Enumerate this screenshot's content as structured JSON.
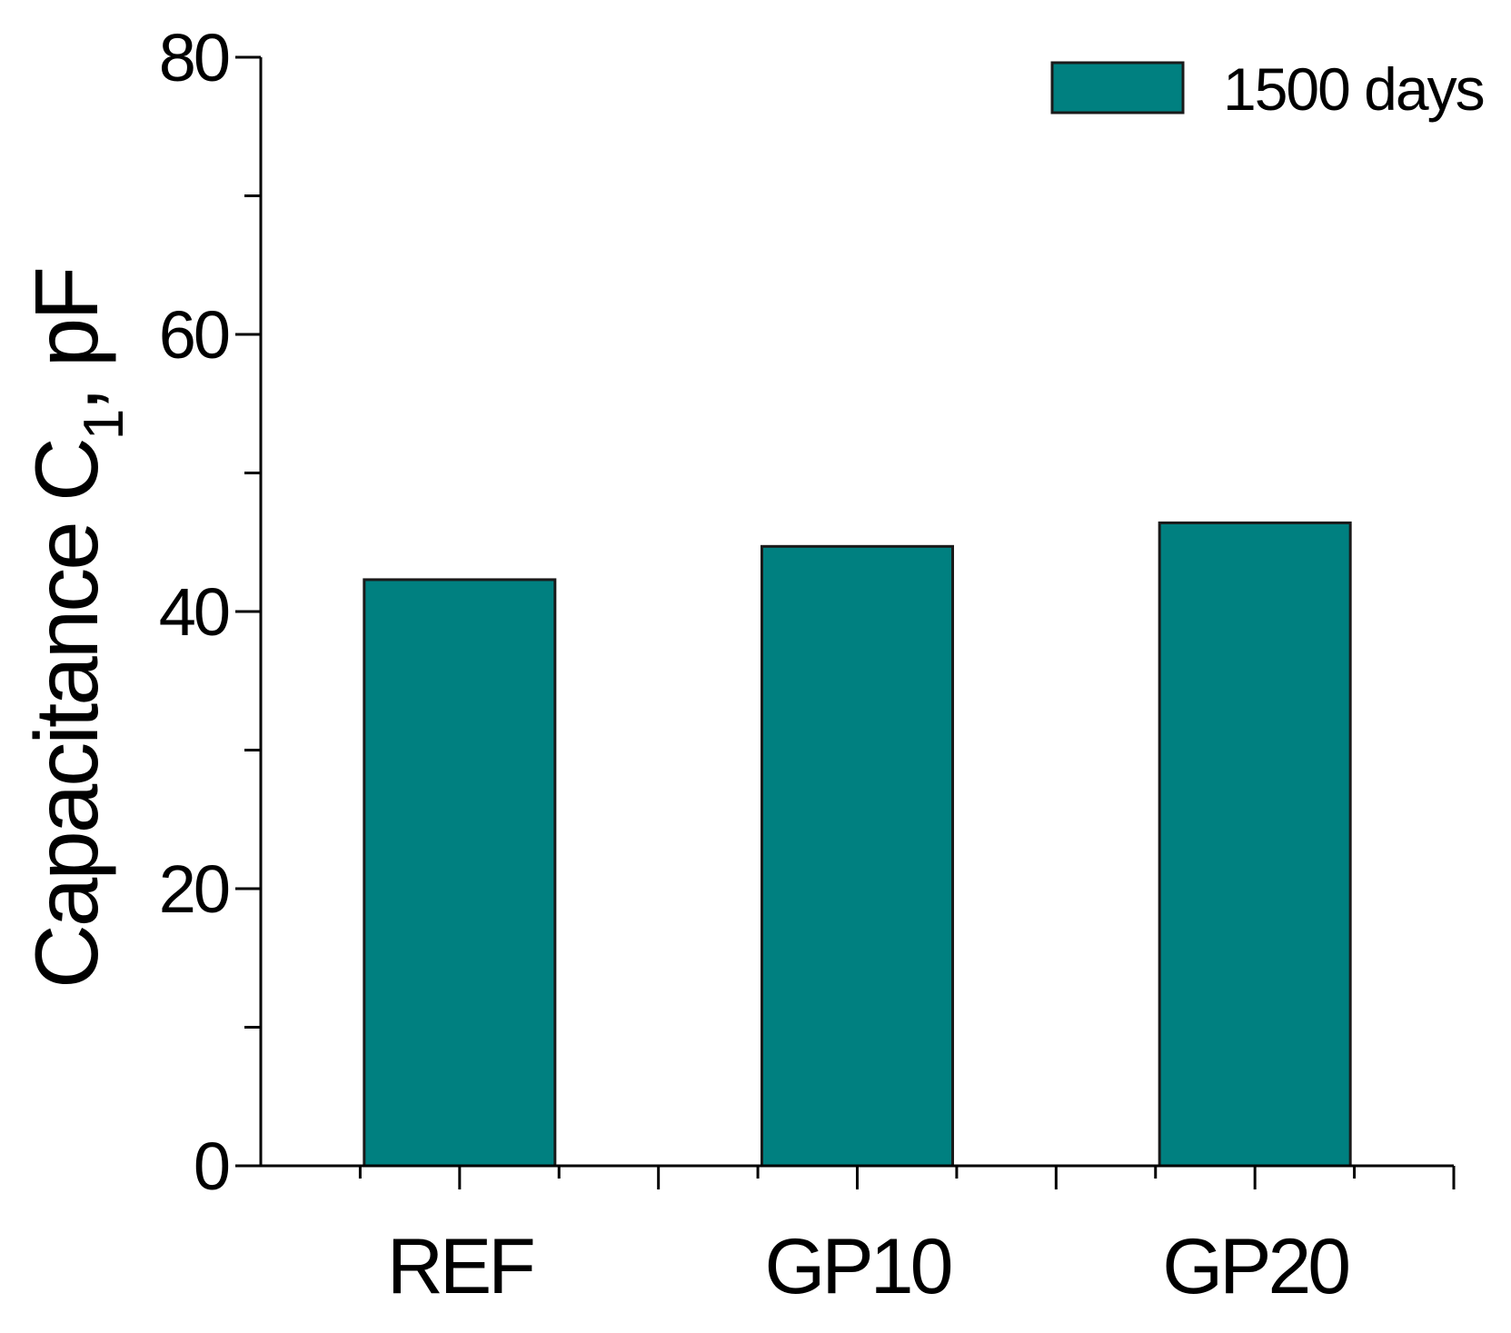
{
  "chart_data": {
    "type": "bar",
    "categories": [
      "REF",
      "GP10",
      "GP20"
    ],
    "series": [
      {
        "name": "1500 days",
        "values": [
          42.3,
          44.7,
          46.4
        ],
        "color": "#008080"
      }
    ],
    "ylabel": {
      "main": "Capacitance C",
      "subscript": "1",
      "suffix": ", pF"
    },
    "xlabel": "",
    "ylim": [
      0,
      80
    ],
    "y_major_ticks": [
      0,
      20,
      40,
      60,
      80
    ],
    "y_minor_ticks": [
      10,
      30,
      50,
      70
    ],
    "grid": false,
    "legend": {
      "position": "top-right",
      "label": "1500 days"
    },
    "bar_stroke_color": "#1a1a1a",
    "axis_color": "#000000"
  }
}
